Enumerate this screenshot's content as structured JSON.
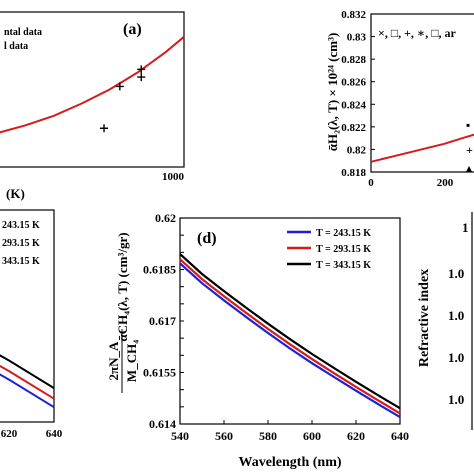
{
  "chart_data": [
    {
      "id": "a",
      "type": "scatter",
      "panel_label": "(a)",
      "xlim": [
        0,
        1000
      ],
      "ylim": [
        0,
        1
      ],
      "x_ticks": [
        "1000"
      ],
      "xlabel": "(K)",
      "legend": [
        "ntal data",
        "l data"
      ],
      "fit": {
        "x": [
          0,
          150,
          300,
          450,
          600,
          750,
          900,
          1000
        ],
        "y": [
          0.22,
          0.27,
          0.33,
          0.41,
          0.5,
          0.61,
          0.74,
          0.84
        ]
      },
      "points": {
        "x": [
          570,
          655,
          770,
          770
        ],
        "y": [
          0.25,
          0.52,
          0.58,
          0.63
        ]
      }
    },
    {
      "id": "b",
      "type": "line",
      "xlim": [
        0,
        300
      ],
      "ylim": [
        0.818,
        0.832
      ],
      "y_ticks": [
        "0.818",
        "0.82",
        "0.822",
        "0.824",
        "0.826",
        "0.828",
        "0.83",
        "0.832"
      ],
      "x_ticks": [
        "0",
        "200"
      ],
      "ylabel": "ᾱH₂(λ, T) × 10²⁴ (cm³)",
      "legend_text": "×, □, +, ∗, □, ar",
      "series": [
        {
          "x": [
            0,
            50,
            100,
            150,
            200,
            250,
            300
          ],
          "y": [
            0.8189,
            0.8193,
            0.8197,
            0.8201,
            0.8205,
            0.821,
            0.8215
          ]
        }
      ]
    },
    {
      "id": "c",
      "type": "line",
      "xlim": [
        600,
        640
      ],
      "ylim": [
        0,
        1
      ],
      "x_ticks": [
        "620",
        "640"
      ],
      "legend_partial": [
        "243.15 K",
        "293.15 K",
        "343.15 K"
      ],
      "series": [
        {
          "x": [
            600,
            620,
            640
          ],
          "y": [
            0.32,
            0.2,
            0.07
          ]
        },
        {
          "x": [
            600,
            620,
            640
          ],
          "y": [
            0.36,
            0.24,
            0.11
          ]
        },
        {
          "x": [
            600,
            620,
            640
          ],
          "y": [
            0.41,
            0.29,
            0.16
          ]
        }
      ]
    },
    {
      "id": "d",
      "type": "line",
      "panel_label": "(d)",
      "xlim": [
        540,
        640
      ],
      "ylim": [
        0.614,
        0.62
      ],
      "x_ticks": [
        "540",
        "560",
        "580",
        "600",
        "620",
        "640"
      ],
      "y_ticks": [
        "0.614",
        "0.6145",
        "0.615",
        "0.6155",
        "0.616",
        "0.6165",
        "0.617",
        "0.6175",
        "0.618",
        "0.6185",
        "0.619",
        "0.6195",
        "0.62"
      ],
      "y_tick_labels_shown": [
        "0.614",
        "0.6155",
        "0.617",
        "0.6185",
        "0.62"
      ],
      "xlabel": "Wavelength (nm)",
      "ylabel_top": "2πN_A",
      "ylabel_bottom": "M_CH₄",
      "ylabel_mid": "ᾱCH₄(λ, T) (cm³/gr)",
      "series": [
        {
          "name": "T = 243.15 K",
          "color": "#1f1fd6",
          "x": [
            540,
            550,
            560,
            570,
            580,
            590,
            600,
            610,
            620,
            630,
            640
          ],
          "y": [
            0.61868,
            0.6181,
            0.6176,
            0.61712,
            0.61665,
            0.6162,
            0.61577,
            0.61537,
            0.61497,
            0.61458,
            0.6142
          ]
        },
        {
          "name": "T = 293.15 K",
          "color": "#d41c1c",
          "x": [
            540,
            550,
            560,
            570,
            580,
            590,
            600,
            610,
            620,
            630,
            640
          ],
          "y": [
            0.6188,
            0.61822,
            0.61772,
            0.61724,
            0.61677,
            0.61632,
            0.61589,
            0.61548,
            0.61508,
            0.61469,
            0.61431
          ]
        },
        {
          "name": "T = 343.15 K",
          "color": "#000000",
          "x": [
            540,
            550,
            560,
            570,
            580,
            590,
            600,
            610,
            620,
            630,
            640
          ],
          "y": [
            0.61895,
            0.61837,
            0.61787,
            0.61739,
            0.61692,
            0.61647,
            0.61604,
            0.61563,
            0.61523,
            0.61484,
            0.61446
          ]
        }
      ]
    },
    {
      "id": "e",
      "type": "line",
      "ylabel": "Refractive index",
      "y_ticks_partial": [
        "1",
        "1.0",
        "1.0",
        "1.0",
        "1.0"
      ]
    }
  ],
  "colors": {
    "red": "#d41c1c",
    "blue": "#1f1fd6",
    "black": "#000000"
  }
}
